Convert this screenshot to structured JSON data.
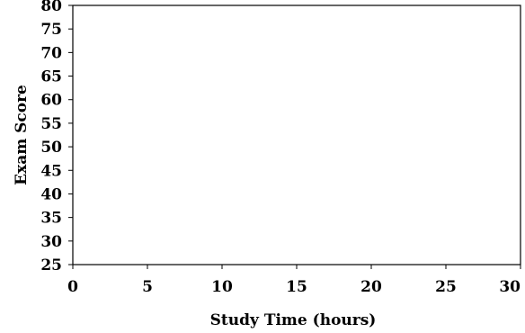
{
  "chart_data": {
    "type": "scatter",
    "title": "",
    "xlabel": "Study Time (hours)",
    "ylabel": "Exam Score",
    "xlim": [
      0,
      30
    ],
    "ylim": [
      25,
      80
    ],
    "x_ticks": [
      0,
      5,
      10,
      15,
      20,
      25,
      30
    ],
    "y_ticks": [
      25,
      30,
      35,
      40,
      45,
      50,
      55,
      60,
      65,
      70,
      75,
      80
    ],
    "series": [
      {
        "x": [],
        "y": []
      }
    ],
    "grid": false,
    "legend": "none"
  }
}
